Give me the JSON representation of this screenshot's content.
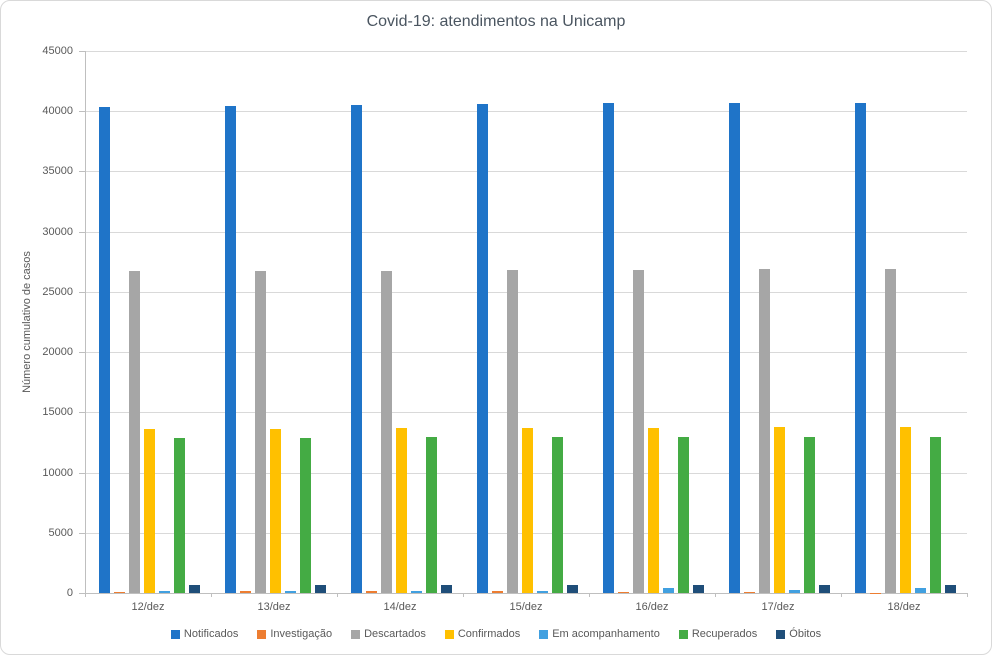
{
  "colors": {
    "title_text": "#4a5560",
    "axis_text": "#595959",
    "gridline": "#d9d9d9",
    "axis_line": "#bfbfbf",
    "background": "#ffffff",
    "border": "#d9d9d9"
  },
  "chart_data": {
    "type": "bar",
    "title": "Covid-19: atendimentos na Unicamp",
    "xlabel": "",
    "ylabel": "Número cumulativo de casos",
    "ylim": [
      0,
      45000
    ],
    "ytick_step": 5000,
    "grid": true,
    "legend_position": "bottom",
    "categories": [
      "12/dez",
      "13/dez",
      "14/dez",
      "15/dez",
      "16/dez",
      "17/dez",
      "18/dez"
    ],
    "series": [
      {
        "name": "Notificados",
        "color": "#1f74c8",
        "values": [
          40350,
          40450,
          40550,
          40620,
          40660,
          40700,
          40720
        ]
      },
      {
        "name": "Investigação",
        "color": "#ed7d31",
        "values": [
          60,
          160,
          170,
          160,
          50,
          50,
          40
        ]
      },
      {
        "name": "Descartados",
        "color": "#a6a6a6",
        "values": [
          26700,
          26720,
          26750,
          26800,
          26850,
          26880,
          26900
        ]
      },
      {
        "name": "Confirmados",
        "color": "#ffc000",
        "values": [
          13600,
          13630,
          13680,
          13700,
          13720,
          13760,
          13800
        ]
      },
      {
        "name": "Em acompanhamento",
        "color": "#41a0e0",
        "values": [
          160,
          170,
          175,
          185,
          395,
          270,
          410
        ]
      },
      {
        "name": "Recuperados",
        "color": "#44ab44",
        "values": [
          12890,
          12900,
          12920,
          12940,
          12950,
          12960,
          12980
        ]
      },
      {
        "name": "Óbitos",
        "color": "#1f4e79",
        "values": [
          645,
          648,
          650,
          652,
          655,
          658,
          660
        ]
      }
    ]
  }
}
